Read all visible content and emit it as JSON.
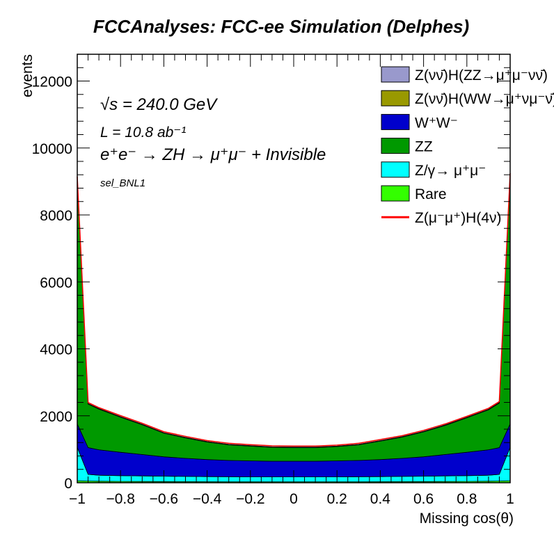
{
  "chart_data": {
    "type": "area",
    "title": "FCCAnalyses: FCC-ee Simulation (Delphes)",
    "xlabel": "Missing cos(θ)",
    "ylabel": "events",
    "xlim": [
      -1,
      1
    ],
    "ylim": [
      0,
      12800
    ],
    "x_ticks": [
      "−1",
      "−0.8",
      "−0.6",
      "−0.4",
      "−0.2",
      "0",
      "0.2",
      "0.4",
      "0.6",
      "0.8",
      "1"
    ],
    "y_ticks": [
      "0",
      "2000",
      "4000",
      "6000",
      "8000",
      "10000",
      "12000"
    ],
    "annotations": {
      "energy": "√s = 240.0 GeV",
      "lumi": "L = 10.8 ab⁻¹",
      "process": "e⁺e⁻ → ZH → μ⁺μ⁻ + Invisible",
      "selection": "sel_BNL1"
    },
    "legend_position": "top-right",
    "x": [
      -0.99,
      -0.95,
      -0.9,
      -0.8,
      -0.7,
      -0.6,
      -0.5,
      -0.4,
      -0.3,
      -0.2,
      -0.1,
      0,
      0.1,
      0.2,
      0.3,
      0.4,
      0.5,
      0.6,
      0.7,
      0.8,
      0.9,
      0.95,
      0.99
    ],
    "series": [
      {
        "name": "Rare",
        "color": "#33ff00",
        "values": [
          60,
          50,
          45,
          40,
          38,
          36,
          34,
          32,
          30,
          30,
          30,
          30,
          30,
          30,
          30,
          32,
          34,
          36,
          38,
          40,
          45,
          50,
          60
        ]
      },
      {
        "name": "Z/γ→ μ⁺μ⁻",
        "color": "#00ffff",
        "values": [
          1000,
          200,
          180,
          170,
          165,
          160,
          155,
          150,
          148,
          145,
          145,
          145,
          145,
          145,
          148,
          150,
          155,
          160,
          165,
          170,
          180,
          200,
          1000
        ]
      },
      {
        "name": "W⁺W⁻",
        "color": "#0000cc",
        "values": [
          700,
          800,
          760,
          700,
          640,
          580,
          540,
          510,
          490,
          480,
          470,
          470,
          470,
          480,
          490,
          510,
          540,
          580,
          640,
          700,
          760,
          800,
          700
        ]
      },
      {
        "name": "ZZ",
        "color": "#009900",
        "values": [
          7340,
          1300,
          1215,
          1050,
          890,
          704,
          611,
          523,
          465,
          438,
          413,
          405,
          405,
          425,
          465,
          553,
          631,
          744,
          870,
          1030,
          1195,
          1330,
          7440
        ]
      },
      {
        "name": "Z(νν̄)H(WW→μ⁺νμ⁻ν̄)",
        "color": "#999900",
        "values": [
          10,
          10,
          10,
          10,
          10,
          10,
          10,
          10,
          10,
          10,
          10,
          10,
          10,
          10,
          10,
          10,
          10,
          10,
          10,
          10,
          10,
          10,
          10
        ]
      },
      {
        "name": "Z(νν̄)H(ZZ→μ⁺μ⁻νν̄)",
        "color": "#9999cc",
        "values": [
          5,
          5,
          5,
          5,
          5,
          5,
          5,
          5,
          5,
          5,
          5,
          5,
          5,
          5,
          5,
          5,
          5,
          5,
          5,
          5,
          5,
          5,
          5
        ]
      },
      {
        "name": "Z(μ⁻μ⁺)H(4ν)",
        "color": "#ff0000",
        "type": "line",
        "values": [
          30,
          30,
          30,
          30,
          30,
          30,
          30,
          30,
          30,
          30,
          30,
          30,
          30,
          30,
          30,
          30,
          30,
          30,
          30,
          30,
          30,
          30,
          30
        ]
      }
    ],
    "legend_order": [
      "Z(νν̄)H(ZZ→μ⁺μ⁻νν̄)",
      "Z(νν̄)H(WW→μ⁺νμ⁻ν̄)",
      "W⁺W⁻",
      "ZZ",
      "Z/γ→ μ⁺μ⁻",
      "Rare",
      "Z(μ⁻μ⁺)H(4ν)"
    ]
  }
}
